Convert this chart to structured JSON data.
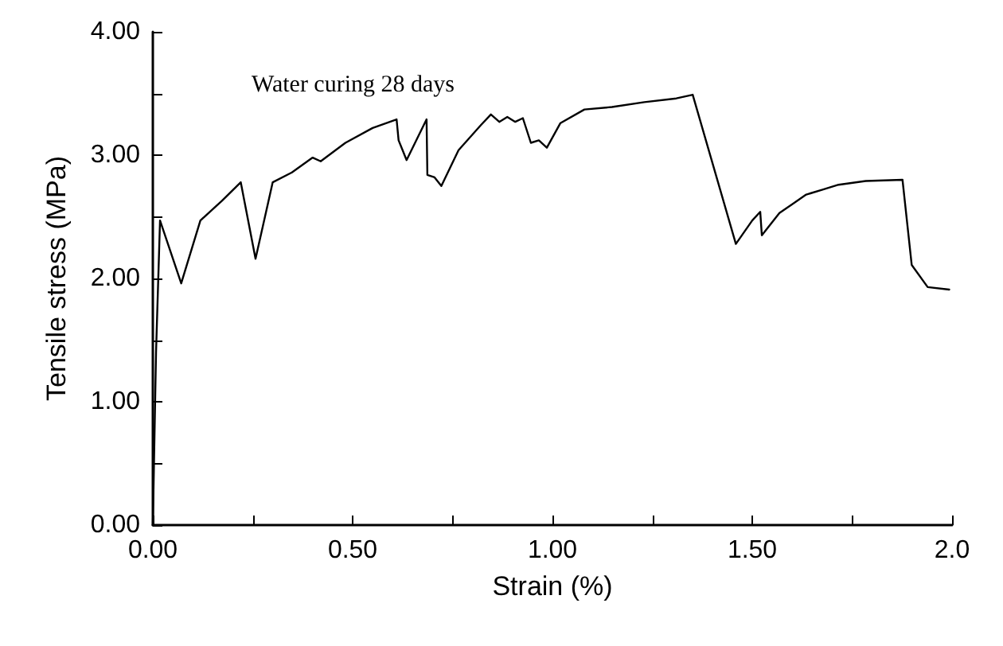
{
  "chart_data": {
    "type": "line",
    "xlabel": "Strain (%)",
    "ylabel": "Tensile stress (MPa)",
    "annotations": [
      "Water curing 28 days"
    ],
    "xlim": [
      0,
      2
    ],
    "xticks": [
      {
        "value": 0,
        "label": "0.00"
      },
      {
        "value": 0.25,
        "label": null
      },
      {
        "value": 0.5,
        "label": "0.50"
      },
      {
        "value": 0.75,
        "label": null
      },
      {
        "value": 1,
        "label": "1.00"
      },
      {
        "value": 1.25,
        "label": null
      },
      {
        "value": 1.5,
        "label": "1.50"
      },
      {
        "value": 1.75,
        "label": null
      },
      {
        "value": 2,
        "label": "2.0"
      }
    ],
    "ylim": [
      0,
      4
    ],
    "yticks": [
      {
        "value": 0,
        "label": "0.00"
      },
      {
        "value": 0.5,
        "label": null
      },
      {
        "value": 1,
        "label": "1.00"
      },
      {
        "value": 1.5,
        "label": null
      },
      {
        "value": 2,
        "label": "2.00"
      },
      {
        "value": 2.5,
        "label": null
      },
      {
        "value": 3,
        "label": "3.00"
      },
      {
        "value": 3.5,
        "label": null
      },
      {
        "value": 4,
        "label": "4.00"
      }
    ],
    "grid": false,
    "marker": "none",
    "line_style": "solid",
    "x": [
      0,
      0.008,
      0.018,
      0.071,
      0.119,
      0.173,
      0.22,
      0.257,
      0.3,
      0.348,
      0.4,
      0.42,
      0.482,
      0.55,
      0.61,
      0.615,
      0.635,
      0.685,
      0.687,
      0.705,
      0.722,
      0.765,
      0.82,
      0.846,
      0.867,
      0.887,
      0.907,
      0.926,
      0.946,
      0.966,
      0.986,
      1.02,
      1.08,
      1.149,
      1.23,
      1.31,
      1.351,
      1.459,
      1.5,
      1.52,
      1.524,
      1.568,
      1.635,
      1.676,
      1.716,
      1.784,
      1.876,
      1.899,
      1.939,
      1.993
    ],
    "series": [
      {
        "color": "#000000",
        "values": [
          0,
          1.4,
          2.47,
          1.96,
          2.47,
          2.63,
          2.78,
          2.16,
          2.78,
          2.86,
          2.98,
          2.95,
          3.1,
          3.22,
          3.29,
          3.12,
          2.96,
          3.29,
          2.84,
          2.82,
          2.75,
          3.04,
          3.24,
          3.33,
          3.27,
          3.31,
          3.27,
          3.3,
          3.1,
          3.12,
          3.06,
          3.26,
          3.37,
          3.39,
          3.43,
          3.46,
          3.49,
          2.28,
          2.47,
          2.54,
          2.35,
          2.53,
          2.68,
          2.72,
          2.76,
          2.79,
          2.8,
          2.11,
          1.93,
          1.91
        ]
      }
    ]
  }
}
